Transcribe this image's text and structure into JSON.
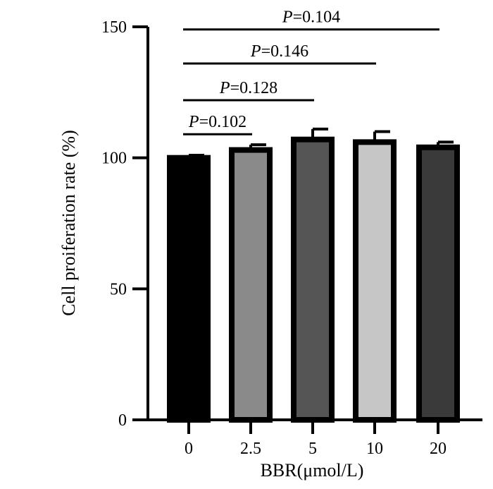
{
  "chart_data": {
    "type": "bar",
    "title": "",
    "xlabel": "BBR(μmol/L)",
    "ylabel": "Cell proiferation rate (%)",
    "ylim": [
      0,
      150
    ],
    "yticks": [
      "0",
      "50",
      "100",
      "150"
    ],
    "categories": [
      "0",
      "2.5",
      "5",
      "10",
      "20"
    ],
    "values": [
      100,
      103,
      107,
      106,
      104
    ],
    "errors": [
      1,
      2,
      4,
      4,
      2
    ],
    "bar_colors": [
      "#000000",
      "#8a8a8a",
      "#555555",
      "#c6c6c6",
      "#3a3a3a"
    ],
    "grid": false,
    "legend": "none",
    "annotations": [
      {
        "from": "0",
        "to": "2.5",
        "italic": "P",
        "text": "=0.102",
        "y": 109
      },
      {
        "from": "0",
        "to": "5",
        "italic": "P",
        "text": "=0.128",
        "y": 122
      },
      {
        "from": "0",
        "to": "10",
        "italic": "P",
        "text": "=0.146",
        "y": 136
      },
      {
        "from": "0",
        "to": "20",
        "italic": "P",
        "text": "=0.104",
        "y": 149
      }
    ]
  }
}
